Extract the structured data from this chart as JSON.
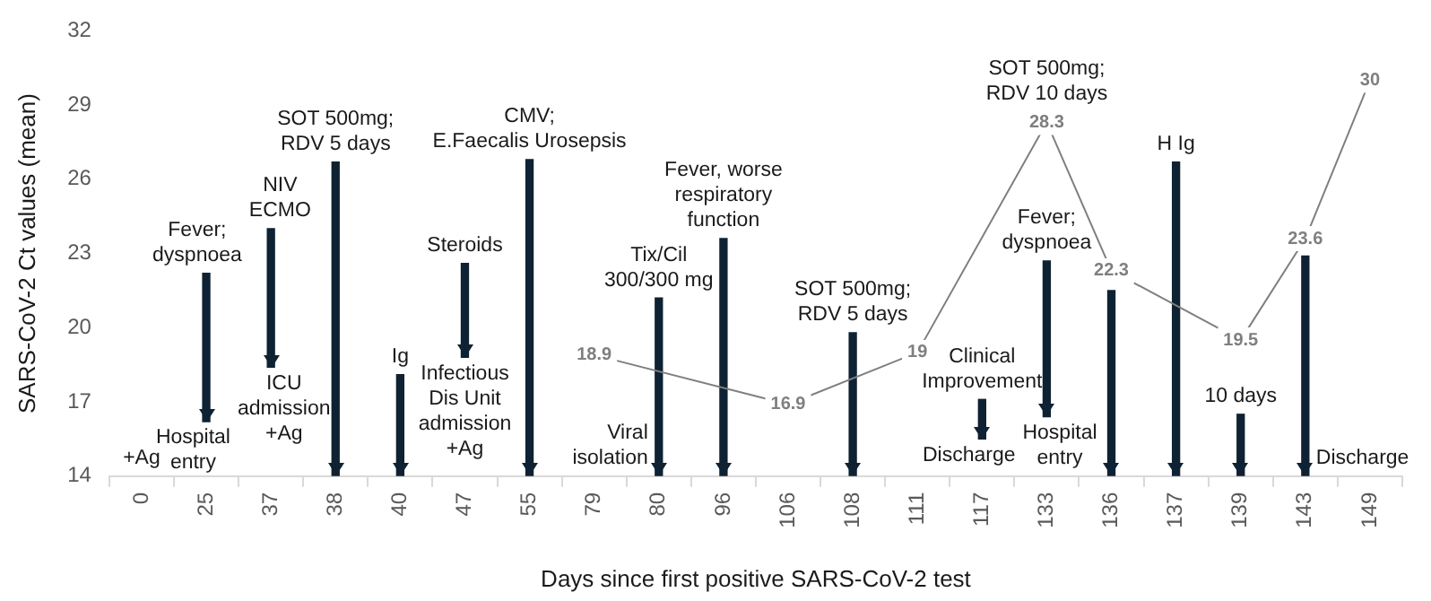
{
  "chart_data": {
    "type": "line",
    "xlabel": "Days since first positive SARS-CoV-2 test",
    "ylabel": "SARS-CoV-2 Ct values (mean)",
    "categories": [
      "0",
      "25",
      "37",
      "38",
      "40",
      "47",
      "55",
      "79",
      "80",
      "96",
      "106",
      "108",
      "111",
      "117",
      "133",
      "136",
      "137",
      "139",
      "143",
      "149"
    ],
    "ylim": [
      14,
      32
    ],
    "yticks": [
      14,
      17,
      20,
      23,
      26,
      29,
      32
    ],
    "grid": false,
    "legend": false,
    "series": [
      {
        "type": "bar",
        "color": "#0e2233",
        "base": [
          null,
          16.2,
          18.4,
          14,
          14,
          18.8,
          14,
          null,
          14,
          14,
          null,
          14,
          null,
          15.5,
          16.4,
          14,
          14,
          14,
          14,
          null
        ],
        "values": [
          null,
          6.0,
          5.6,
          12.7,
          4.1,
          3.8,
          12.8,
          null,
          7.2,
          9.6,
          null,
          5.8,
          null,
          1.6,
          6.3,
          7.5,
          12.7,
          2.5,
          8.9,
          null
        ]
      },
      {
        "color": "#7f7f7f",
        "values": [
          null,
          null,
          null,
          null,
          null,
          null,
          null,
          18.9,
          null,
          null,
          16.9,
          null,
          19,
          null,
          28.3,
          22.3,
          null,
          19.5,
          23.6,
          30
        ],
        "value_labels": [
          null,
          null,
          null,
          null,
          null,
          null,
          null,
          "18.9",
          null,
          null,
          "16.9",
          null,
          "19",
          null,
          "28.3",
          "22.3",
          null,
          "19.5",
          "23.6",
          "30"
        ]
      }
    ],
    "annotations": [
      "+Ag",
      {
        "text": "Fever;\ndyspnoea",
        "x": "25",
        "y": 22.2
      },
      {
        "text": "Hospital\nentry",
        "x": "25",
        "y": 16.2
      },
      {
        "text": "NIV\nECMO",
        "x": "37",
        "y": 24.0
      },
      {
        "text": "ICU\nadmission\n+Ag",
        "x": "37",
        "y": 18.4
      },
      {
        "text": "SOT 500mg;\nRDV 5 days",
        "x": "38",
        "y": 26.7
      },
      {
        "text": "Ig",
        "x": "40",
        "y": 18.1
      },
      {
        "text": "Steroids",
        "x": "47",
        "y": 22.6
      },
      {
        "text": "Infectious\nDis Unit\nadmission\n+Ag",
        "x": "47",
        "y": 18.8
      },
      {
        "text": "CMV;\nE.Faecalis Urosepsis",
        "x": "55",
        "y": 26.8
      },
      {
        "text": "Viral\nisolation",
        "x": "80",
        "y": 14
      },
      {
        "text": "Tix/Cil\n300/300 mg",
        "x": "80",
        "y": 21.2
      },
      {
        "text": "Fever, worse\nrespiratory\nfunction",
        "x": "96",
        "y": 23.6
      },
      {
        "text": "SOT 500mg;\nRDV 5 days",
        "x": "108",
        "y": 19.8
      },
      {
        "text": "Clinical\nImprovement",
        "x": "117",
        "y": 17.1
      },
      {
        "text": "Discharge",
        "x": "117",
        "y": 15.5
      },
      {
        "text": "SOT 500mg;\nRDV 10 days",
        "x": "133",
        "y": 28.3
      },
      {
        "text": "Fever;\ndyspnoea",
        "x": "133",
        "y": 22.7
      },
      {
        "text": "Hospital\nentry",
        "x": "133",
        "y": 16.4
      },
      {
        "text": "H Ig",
        "x": "137",
        "y": 26.7
      },
      {
        "text": "10 days",
        "x": "139",
        "y": 16.5
      },
      {
        "text": "Discharge",
        "x": "143",
        "y": 14
      }
    ]
  }
}
